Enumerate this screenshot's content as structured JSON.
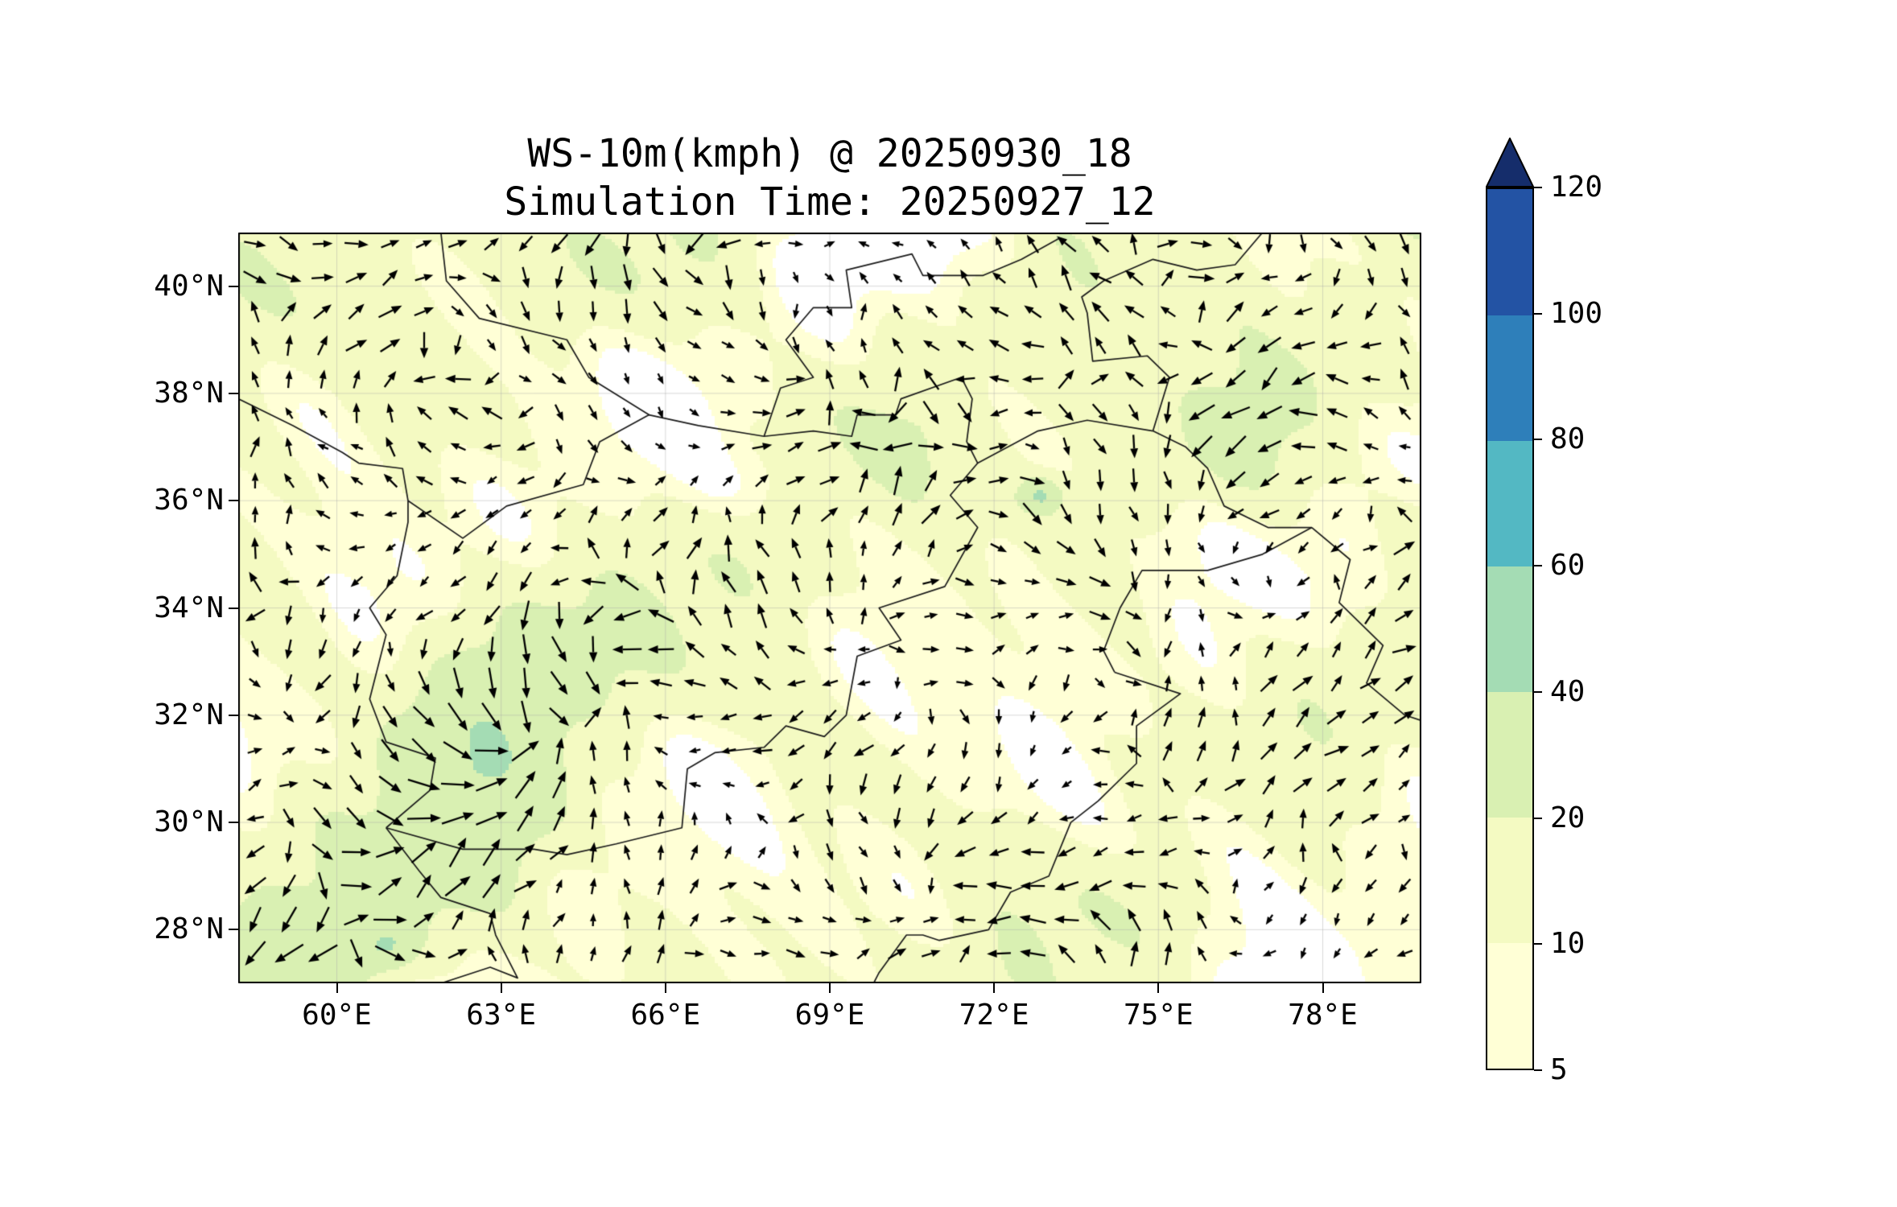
{
  "title": {
    "line1": "WS-10m(kmph) @ 20250930_18",
    "line2": "Simulation Time: 20250927_12"
  },
  "chart_data": {
    "type": "map-quiver-contourf",
    "title": "WS-10m(kmph) @ 20250930_18",
    "subtitle": "Simulation Time: 20250927_12",
    "variable": "WS-10m",
    "units": "kmph",
    "valid_time_label": "20250930_18",
    "simulation_time_label": "20250927_12",
    "extent": {
      "lon_min": 58.2,
      "lon_max": 79.8,
      "lat_min": 27.0,
      "lat_max": 41.0
    },
    "x_ticks": [
      {
        "lon": 60,
        "label": "60°E"
      },
      {
        "lon": 63,
        "label": "63°E"
      },
      {
        "lon": 66,
        "label": "66°E"
      },
      {
        "lon": 69,
        "label": "69°E"
      },
      {
        "lon": 72,
        "label": "72°E"
      },
      {
        "lon": 75,
        "label": "75°E"
      },
      {
        "lon": 78,
        "label": "78°E"
      }
    ],
    "y_ticks": [
      {
        "lat": 40,
        "label": "40°N"
      },
      {
        "lat": 38,
        "label": "38°N"
      },
      {
        "lat": 36,
        "label": "36°N"
      },
      {
        "lat": 34,
        "label": "34°N"
      },
      {
        "lat": 32,
        "label": "32°N"
      },
      {
        "lat": 30,
        "label": "30°N"
      },
      {
        "lat": 28,
        "label": "28°N"
      }
    ],
    "grid": true,
    "colorbar": {
      "orientation": "vertical",
      "position": "right",
      "levels": [
        5,
        10,
        20,
        40,
        60,
        80,
        100,
        120
      ],
      "tick_labels": [
        "5",
        "10",
        "20",
        "40",
        "60",
        "80",
        "100",
        "120"
      ],
      "colors": [
        "#ffffd6",
        "#f4fac2",
        "#d9f0b2",
        "#a4dcb4",
        "#53b8c3",
        "#2e7fba",
        "#2353a4"
      ],
      "extend_color": "#152d6b",
      "below_min_color": "#ffffff"
    },
    "quiver": {
      "color": "#000000",
      "approx_grid": [
        35,
        22
      ]
    },
    "borders": [
      [
        [
          61.9,
          27.0
        ],
        [
          62.8,
          27.3
        ],
        [
          63.3,
          27.1
        ],
        [
          62.9,
          27.9
        ],
        [
          62.8,
          28.3
        ],
        [
          61.9,
          28.6
        ],
        [
          61.5,
          29.1
        ],
        [
          60.9,
          29.9
        ]
      ],
      [
        [
          60.9,
          29.9
        ],
        [
          61.7,
          30.6
        ],
        [
          61.8,
          31.2
        ],
        [
          60.9,
          31.5
        ],
        [
          60.6,
          32.3
        ],
        [
          60.9,
          33.5
        ],
        [
          60.6,
          34.0
        ],
        [
          61.1,
          34.6
        ],
        [
          61.3,
          35.6
        ],
        [
          61.3,
          36.0
        ]
      ],
      [
        [
          58.2,
          37.9
        ],
        [
          59.2,
          37.4
        ],
        [
          60.1,
          36.9
        ],
        [
          60.4,
          36.7
        ],
        [
          61.2,
          36.6
        ],
        [
          61.3,
          36.0
        ]
      ],
      [
        [
          61.3,
          36.0
        ],
        [
          62.3,
          35.3
        ],
        [
          63.1,
          35.9
        ],
        [
          64.5,
          36.3
        ],
        [
          64.8,
          37.1
        ],
        [
          65.7,
          37.6
        ],
        [
          66.6,
          37.4
        ],
        [
          67.8,
          37.2
        ],
        [
          68.7,
          37.3
        ],
        [
          69.4,
          37.2
        ],
        [
          69.5,
          37.6
        ],
        [
          70.2,
          37.6
        ],
        [
          70.3,
          37.9
        ],
        [
          71.4,
          38.3
        ],
        [
          71.6,
          37.9
        ],
        [
          71.5,
          37.1
        ],
        [
          71.7,
          36.7
        ],
        [
          72.8,
          37.3
        ],
        [
          73.7,
          37.5
        ],
        [
          74.9,
          37.3
        ]
      ],
      [
        [
          60.9,
          29.9
        ],
        [
          62.3,
          29.5
        ],
        [
          63.6,
          29.5
        ],
        [
          64.2,
          29.4
        ],
        [
          65.1,
          29.6
        ],
        [
          66.3,
          29.9
        ],
        [
          66.4,
          31.0
        ],
        [
          66.9,
          31.3
        ],
        [
          67.8,
          31.4
        ],
        [
          68.2,
          31.8
        ],
        [
          68.9,
          31.6
        ],
        [
          69.3,
          32.0
        ],
        [
          69.5,
          33.1
        ],
        [
          70.3,
          33.4
        ],
        [
          69.9,
          34.0
        ],
        [
          71.1,
          34.4
        ],
        [
          71.7,
          35.5
        ],
        [
          71.2,
          36.1
        ],
        [
          71.7,
          36.7
        ]
      ],
      [
        [
          65.7,
          37.6
        ],
        [
          64.6,
          38.3
        ],
        [
          64.2,
          39.0
        ],
        [
          62.6,
          39.4
        ],
        [
          62.0,
          40.1
        ],
        [
          61.9,
          41.0
        ]
      ],
      [
        [
          67.8,
          37.2
        ],
        [
          68.1,
          38.1
        ],
        [
          68.7,
          38.3
        ],
        [
          68.2,
          39.0
        ],
        [
          68.7,
          39.6
        ],
        [
          69.4,
          39.6
        ],
        [
          69.3,
          40.3
        ],
        [
          70.5,
          40.6
        ],
        [
          70.7,
          40.2
        ],
        [
          71.8,
          40.2
        ],
        [
          72.5,
          40.5
        ],
        [
          73.2,
          40.9
        ]
      ],
      [
        [
          74.9,
          37.3
        ],
        [
          75.2,
          38.3
        ],
        [
          74.8,
          38.7
        ],
        [
          73.8,
          38.6
        ],
        [
          73.7,
          39.5
        ],
        [
          73.6,
          39.8
        ],
        [
          74.0,
          40.1
        ],
        [
          74.9,
          40.5
        ],
        [
          75.7,
          40.3
        ],
        [
          76.4,
          40.4
        ],
        [
          76.9,
          41.0
        ]
      ],
      [
        [
          74.9,
          37.3
        ],
        [
          75.5,
          37.0
        ],
        [
          75.9,
          36.6
        ],
        [
          76.2,
          35.9
        ],
        [
          77.0,
          35.5
        ],
        [
          77.8,
          35.5
        ]
      ],
      [
        [
          77.8,
          35.5
        ],
        [
          76.9,
          35.0
        ],
        [
          75.9,
          34.7
        ],
        [
          74.7,
          34.7
        ],
        [
          74.3,
          34.0
        ],
        [
          74.0,
          33.2
        ],
        [
          74.2,
          32.8
        ]
      ],
      [
        [
          74.2,
          32.8
        ],
        [
          75.4,
          32.4
        ],
        [
          74.6,
          31.8
        ],
        [
          74.6,
          31.1
        ],
        [
          73.9,
          30.4
        ],
        [
          73.4,
          30.0
        ],
        [
          73.0,
          29.0
        ],
        [
          72.3,
          28.7
        ],
        [
          71.9,
          28.0
        ],
        [
          71.0,
          27.8
        ],
        [
          70.7,
          27.9
        ],
        [
          70.4,
          27.9
        ],
        [
          69.9,
          27.2
        ],
        [
          69.8,
          27.0
        ]
      ],
      [
        [
          77.8,
          35.5
        ],
        [
          78.5,
          34.9
        ],
        [
          78.3,
          34.1
        ],
        [
          79.1,
          33.3
        ],
        [
          78.8,
          32.6
        ],
        [
          79.5,
          32.0
        ],
        [
          79.8,
          31.9
        ]
      ]
    ]
  }
}
